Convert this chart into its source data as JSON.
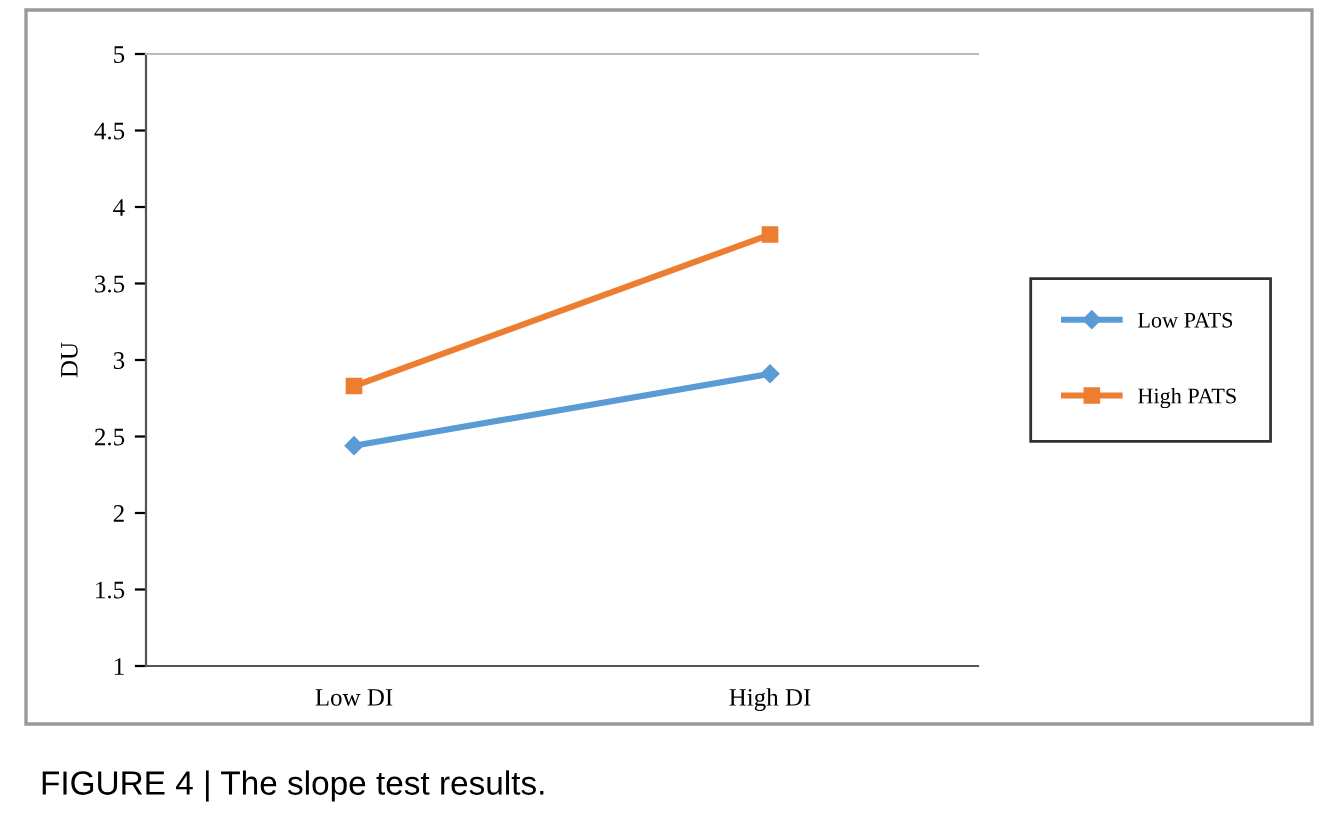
{
  "chart_data": {
    "type": "line",
    "ylabel": "DU",
    "categories": [
      "Low DI",
      "High DI"
    ],
    "series": [
      {
        "name": "Low PATS",
        "color": "#5b9bd5",
        "values": [
          2.44,
          2.91
        ],
        "marker": "diamond"
      },
      {
        "name": "High PATS",
        "color": "#ed7d31",
        "values": [
          2.83,
          3.82
        ],
        "marker": "square"
      }
    ],
    "ylim": [
      1,
      5
    ],
    "yticks": [
      1,
      1.5,
      2,
      2.5,
      3,
      3.5,
      4,
      4.5,
      5
    ],
    "grid": false,
    "legend": "right",
    "line_style": "solid",
    "annotations": [
      "FIGURE 4 | The slope test results."
    ]
  }
}
